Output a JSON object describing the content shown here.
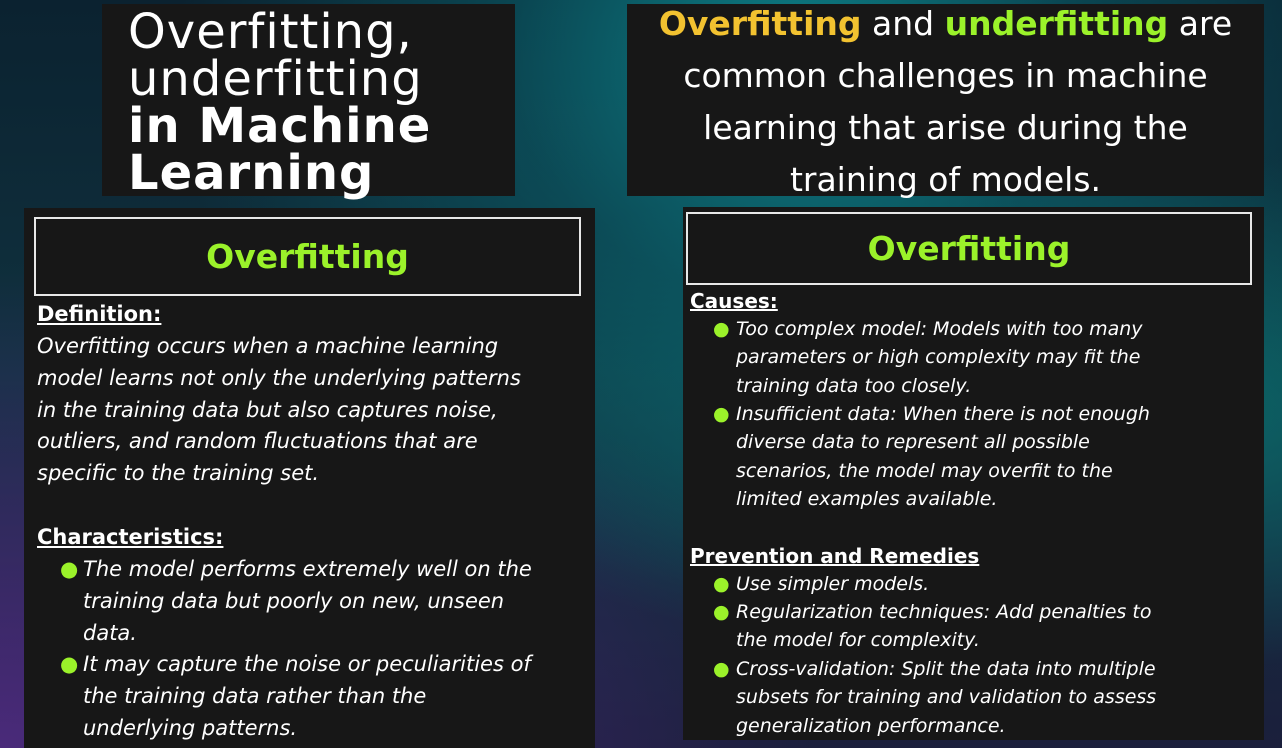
{
  "title": {
    "lines": [
      "Overfitting,",
      "underfitting",
      "in Machine",
      "Learning"
    ]
  },
  "intro": {
    "kw1": "Overfitting",
    "and": " and ",
    "kw2": "underfitting",
    "are": " are",
    "line2": "common challenges in machine",
    "line3": "learning that arise during the",
    "line4": "training of models."
  },
  "left_card": {
    "heading": "Overfitting",
    "definition_label": "Definition:",
    "definition_lines": [
      "Overfitting occurs when a machine learning",
      "model learns not only the underlying patterns",
      "in the training data but also captures noise,",
      "outliers, and random fluctuations that are",
      "specific to the training set."
    ],
    "characteristics_label": "Characteristics:",
    "characteristics": [
      {
        "lines": [
          "The model performs extremely well on the",
          "training data but poorly on new, unseen",
          "data."
        ]
      },
      {
        "lines": [
          "It may capture the noise or peculiarities of",
          "the training data rather than the",
          "underlying patterns."
        ]
      }
    ]
  },
  "right_card": {
    "heading": "Overfitting",
    "causes_label": "Causes:",
    "causes": [
      {
        "lines": [
          "Too complex model: Models with too many",
          "parameters or high complexity may fit the",
          "training data too closely."
        ]
      },
      {
        "lines": [
          "Insufficient data: When there is not enough",
          "diverse data to represent all possible",
          "scenarios, the model may overfit to the",
          "limited examples available."
        ]
      }
    ],
    "prevention_label": "Prevention and Remedies",
    "prevention": [
      {
        "lines": [
          "Use simpler models."
        ]
      },
      {
        "lines": [
          "Regularization techniques: Add penalties to",
          "the model for complexity."
        ]
      },
      {
        "lines": [
          "Cross-validation: Split the data into multiple",
          "subsets for training and validation to assess",
          "generalization performance."
        ]
      }
    ]
  },
  "colors": {
    "accent_green": "#9bf22a",
    "accent_yellow": "#f2c230",
    "card_background": "#171717"
  }
}
